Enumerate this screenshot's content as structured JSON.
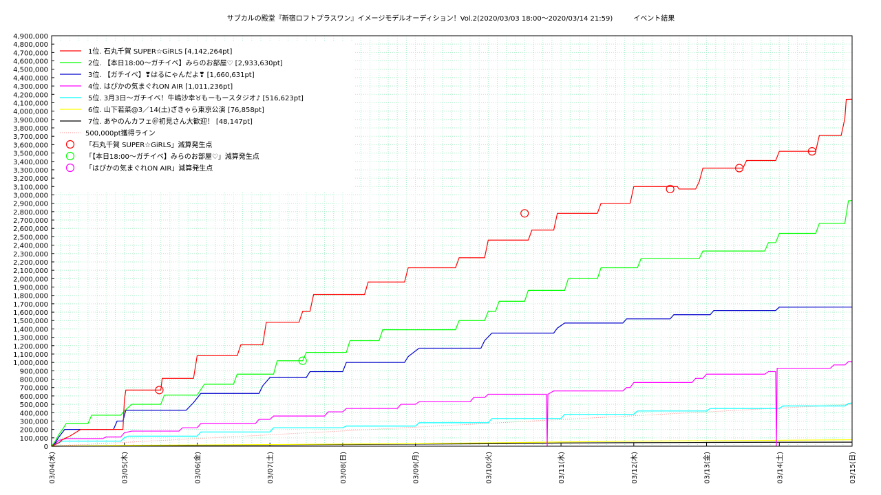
{
  "chart_data": {
    "type": "line",
    "title": "サブカルの殿堂『新宿ロフトプラスワン』イメージモデルオーディション！Vol.2(2020/03/03 18:00〜2020/03/14 21:59)　　　イベント結果",
    "ylim": [
      0,
      4900000
    ],
    "ytick_step": 100000,
    "x_range": [
      "03/04(水)",
      "03/15(日)"
    ],
    "x_ticks": [
      "03/04(水)",
      "03/05(木)",
      "03/06(金)",
      "03/07(土)",
      "03/08(日)",
      "03/09(月)",
      "03/10(火)",
      "03/11(水)",
      "03/12(木)",
      "03/13(金)",
      "03/14(土)",
      "03/15(日)"
    ],
    "grid": true,
    "legend_position": "top-left",
    "series": [
      {
        "name": "1位. 石丸千賀 SUPER☆GiRLS [4,142,264pt]",
        "color": "#ff0000",
        "points": [
          [
            0.0,
            0
          ],
          [
            0.1,
            40000
          ],
          [
            0.15,
            80000
          ],
          [
            0.25,
            120000
          ],
          [
            0.4,
            200000
          ],
          [
            0.98,
            200000
          ],
          [
            1.0,
            550000
          ],
          [
            1.02,
            670000
          ],
          [
            1.5,
            670000
          ],
          [
            1.52,
            810000
          ],
          [
            1.95,
            810000
          ],
          [
            2.0,
            1080000
          ],
          [
            2.55,
            1080000
          ],
          [
            2.6,
            1210000
          ],
          [
            2.9,
            1210000
          ],
          [
            2.95,
            1480000
          ],
          [
            3.4,
            1480000
          ],
          [
            3.45,
            1610000
          ],
          [
            3.55,
            1610000
          ],
          [
            3.6,
            1810000
          ],
          [
            4.3,
            1810000
          ],
          [
            4.35,
            1960000
          ],
          [
            4.85,
            1960000
          ],
          [
            4.9,
            2130000
          ],
          [
            5.55,
            2130000
          ],
          [
            5.6,
            2250000
          ],
          [
            5.95,
            2250000
          ],
          [
            6.0,
            2460000
          ],
          [
            6.55,
            2460000
          ],
          [
            6.6,
            2580000
          ],
          [
            6.9,
            2580000
          ],
          [
            6.95,
            2780000
          ],
          [
            7.5,
            2780000
          ],
          [
            7.55,
            2900000
          ],
          [
            7.95,
            2900000
          ],
          [
            8.0,
            3100000
          ],
          [
            8.6,
            3100000
          ],
          [
            8.62,
            3070000
          ],
          [
            8.85,
            3070000
          ],
          [
            8.9,
            3160000
          ],
          [
            8.95,
            3320000
          ],
          [
            9.5,
            3320000
          ],
          [
            9.55,
            3410000
          ],
          [
            9.95,
            3410000
          ],
          [
            10.0,
            3520000
          ],
          [
            10.5,
            3520000
          ],
          [
            10.55,
            3710000
          ],
          [
            10.85,
            3710000
          ],
          [
            10.9,
            3910000
          ],
          [
            10.92,
            4140000
          ],
          [
            11.0,
            4142264
          ]
        ]
      },
      {
        "name": "2位. 【本日18:00〜ガチイベ】みらのお部屋♡ [2,933,630pt]",
        "color": "#00ff00",
        "points": [
          [
            0.0,
            0
          ],
          [
            0.05,
            60000
          ],
          [
            0.1,
            140000
          ],
          [
            0.15,
            200000
          ],
          [
            0.2,
            270000
          ],
          [
            0.5,
            270000
          ],
          [
            0.55,
            370000
          ],
          [
            0.95,
            370000
          ],
          [
            1.0,
            420000
          ],
          [
            1.1,
            500000
          ],
          [
            1.5,
            500000
          ],
          [
            1.55,
            610000
          ],
          [
            2.0,
            610000
          ],
          [
            2.1,
            740000
          ],
          [
            2.5,
            740000
          ],
          [
            2.55,
            860000
          ],
          [
            3.05,
            860000
          ],
          [
            3.1,
            1020000
          ],
          [
            3.45,
            1020000
          ],
          [
            3.5,
            1120000
          ],
          [
            4.05,
            1120000
          ],
          [
            4.1,
            1260000
          ],
          [
            4.5,
            1260000
          ],
          [
            4.55,
            1390000
          ],
          [
            5.55,
            1390000
          ],
          [
            5.6,
            1500000
          ],
          [
            5.95,
            1500000
          ],
          [
            6.0,
            1610000
          ],
          [
            6.1,
            1610000
          ],
          [
            6.15,
            1730000
          ],
          [
            6.5,
            1730000
          ],
          [
            6.55,
            1860000
          ],
          [
            7.05,
            1860000
          ],
          [
            7.1,
            2000000
          ],
          [
            7.5,
            2000000
          ],
          [
            7.55,
            2130000
          ],
          [
            8.05,
            2130000
          ],
          [
            8.1,
            2240000
          ],
          [
            8.9,
            2240000
          ],
          [
            8.95,
            2330000
          ],
          [
            9.8,
            2330000
          ],
          [
            9.85,
            2430000
          ],
          [
            9.95,
            2430000
          ],
          [
            10.0,
            2540000
          ],
          [
            10.5,
            2540000
          ],
          [
            10.55,
            2660000
          ],
          [
            10.9,
            2660000
          ],
          [
            10.95,
            2930000
          ],
          [
            11.0,
            2933630
          ]
        ]
      },
      {
        "name": "3位. 【ガチイベ】❣はるにゃんだよ❣ [1,660,631pt]",
        "color": "#0000cc",
        "points": [
          [
            0.0,
            0
          ],
          [
            0.05,
            40000
          ],
          [
            0.1,
            110000
          ],
          [
            0.18,
            200000
          ],
          [
            0.85,
            200000
          ],
          [
            0.9,
            300000
          ],
          [
            0.98,
            300000
          ],
          [
            1.02,
            430000
          ],
          [
            1.85,
            430000
          ],
          [
            1.95,
            520000
          ],
          [
            2.05,
            630000
          ],
          [
            2.85,
            630000
          ],
          [
            2.9,
            720000
          ],
          [
            3.0,
            820000
          ],
          [
            3.5,
            820000
          ],
          [
            3.55,
            890000
          ],
          [
            4.0,
            890000
          ],
          [
            4.05,
            1000000
          ],
          [
            4.85,
            1000000
          ],
          [
            4.9,
            1070000
          ],
          [
            5.05,
            1170000
          ],
          [
            5.9,
            1170000
          ],
          [
            5.95,
            1260000
          ],
          [
            6.05,
            1350000
          ],
          [
            6.9,
            1350000
          ],
          [
            6.95,
            1410000
          ],
          [
            7.05,
            1470000
          ],
          [
            7.85,
            1470000
          ],
          [
            7.9,
            1520000
          ],
          [
            8.5,
            1520000
          ],
          [
            8.55,
            1570000
          ],
          [
            9.05,
            1570000
          ],
          [
            9.1,
            1620000
          ],
          [
            9.95,
            1620000
          ],
          [
            10.0,
            1660000
          ],
          [
            11.0,
            1660631
          ]
        ]
      },
      {
        "name": "4位. はぴかの気まぐれON AIR [1,011,236pt]",
        "color": "#ff00ff",
        "points": [
          [
            0.0,
            0
          ],
          [
            0.05,
            30000
          ],
          [
            0.1,
            70000
          ],
          [
            0.2,
            90000
          ],
          [
            0.7,
            90000
          ],
          [
            0.75,
            110000
          ],
          [
            0.95,
            110000
          ],
          [
            1.0,
            160000
          ],
          [
            1.1,
            180000
          ],
          [
            1.75,
            180000
          ],
          [
            1.8,
            220000
          ],
          [
            2.0,
            220000
          ],
          [
            2.05,
            270000
          ],
          [
            2.8,
            270000
          ],
          [
            2.85,
            320000
          ],
          [
            3.0,
            320000
          ],
          [
            3.05,
            360000
          ],
          [
            3.75,
            360000
          ],
          [
            3.8,
            410000
          ],
          [
            4.0,
            410000
          ],
          [
            4.05,
            450000
          ],
          [
            4.75,
            450000
          ],
          [
            4.8,
            500000
          ],
          [
            5.0,
            500000
          ],
          [
            5.05,
            530000
          ],
          [
            5.75,
            530000
          ],
          [
            5.8,
            580000
          ],
          [
            5.95,
            580000
          ],
          [
            6.0,
            620000
          ],
          [
            6.8,
            620000
          ],
          [
            6.81,
            0
          ],
          [
            6.82,
            620000
          ],
          [
            6.9,
            660000
          ],
          [
            7.85,
            660000
          ],
          [
            7.9,
            700000
          ],
          [
            7.95,
            700000
          ],
          [
            8.0,
            760000
          ],
          [
            8.8,
            760000
          ],
          [
            8.85,
            810000
          ],
          [
            8.95,
            810000
          ],
          [
            9.0,
            860000
          ],
          [
            9.8,
            860000
          ],
          [
            9.85,
            890000
          ],
          [
            9.95,
            890000
          ],
          [
            9.96,
            0
          ],
          [
            9.97,
            930000
          ],
          [
            10.7,
            930000
          ],
          [
            10.75,
            970000
          ],
          [
            10.9,
            970000
          ],
          [
            10.95,
            1010000
          ],
          [
            11.0,
            1011236
          ]
        ]
      },
      {
        "name": "5位. 3月3日〜ガチイベ！牛嶋沙幸♉もーもースタジオ♪ [516,623pt]",
        "color": "#00ffff",
        "points": [
          [
            0.0,
            0
          ],
          [
            0.05,
            30000
          ],
          [
            0.15,
            60000
          ],
          [
            0.95,
            60000
          ],
          [
            1.0,
            100000
          ],
          [
            1.05,
            120000
          ],
          [
            2.0,
            120000
          ],
          [
            2.05,
            170000
          ],
          [
            3.0,
            170000
          ],
          [
            3.05,
            220000
          ],
          [
            4.0,
            220000
          ],
          [
            4.05,
            240000
          ],
          [
            5.0,
            240000
          ],
          [
            5.05,
            280000
          ],
          [
            6.0,
            280000
          ],
          [
            6.05,
            330000
          ],
          [
            7.0,
            330000
          ],
          [
            7.05,
            380000
          ],
          [
            8.0,
            380000
          ],
          [
            8.05,
            420000
          ],
          [
            9.0,
            420000
          ],
          [
            9.05,
            450000
          ],
          [
            10.0,
            450000
          ],
          [
            10.05,
            480000
          ],
          [
            10.9,
            480000
          ],
          [
            10.95,
            510000
          ],
          [
            11.0,
            516623
          ]
        ]
      },
      {
        "name": "6位. 山下若菜@3／14(土)ざきゃら東京公演 [76,858pt]",
        "color": "#ffff00",
        "points": [
          [
            0.0,
            0
          ],
          [
            1.0,
            10000
          ],
          [
            2.0,
            15000
          ],
          [
            3.0,
            20000
          ],
          [
            4.0,
            25000
          ],
          [
            5.0,
            30000
          ],
          [
            6.0,
            40000
          ],
          [
            7.0,
            50000
          ],
          [
            8.0,
            60000
          ],
          [
            9.0,
            65000
          ],
          [
            10.0,
            70000
          ],
          [
            11.0,
            76858
          ]
        ]
      },
      {
        "name": "7位. あやのんカフェ＠初見さん大歓迎！ [48,147pt]",
        "color": "#000000",
        "points": [
          [
            0.0,
            0
          ],
          [
            1.0,
            5000
          ],
          [
            2.0,
            10000
          ],
          [
            3.0,
            15000
          ],
          [
            4.0,
            20000
          ],
          [
            5.0,
            25000
          ],
          [
            6.0,
            30000
          ],
          [
            7.0,
            38000
          ],
          [
            8.0,
            42000
          ],
          [
            9.0,
            45000
          ],
          [
            10.0,
            47000
          ],
          [
            11.0,
            48147
          ]
        ]
      }
    ],
    "reference_line": {
      "name": "500,000pt獲得ライン",
      "color": "#ff8888",
      "points": [
        [
          0.0,
          0
        ],
        [
          11.0,
          500000
        ]
      ]
    },
    "deduction_markers": [
      {
        "name": "「石丸千賀 SUPER☆GiRLS」減算発生点",
        "color": "#ff0000",
        "points": [
          [
            1.48,
            670000
          ],
          [
            6.5,
            2780000
          ],
          [
            8.5,
            3070000
          ],
          [
            9.45,
            3320000
          ],
          [
            10.45,
            3520000
          ]
        ]
      },
      {
        "name": "「【本日18:00〜ガチイベ】みらのお部屋♡」減算発生点",
        "color": "#00ff00",
        "points": [
          [
            3.45,
            1020000
          ]
        ]
      },
      {
        "name": "「はぴかの気まぐれON AIR」減算発生点",
        "color": "#ff00ff",
        "points": []
      }
    ]
  }
}
